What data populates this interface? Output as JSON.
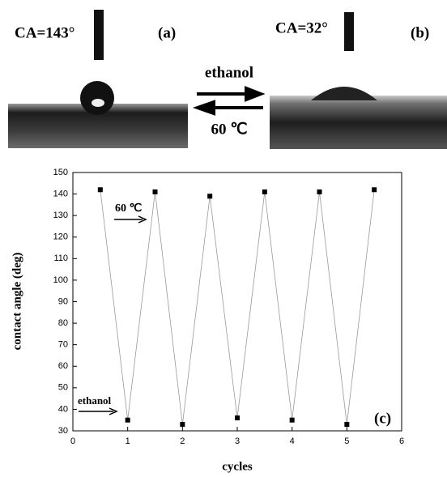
{
  "panels": {
    "a": {
      "label": "(a)",
      "angle": "CA=143°"
    },
    "b": {
      "label": "(b)",
      "angle": "CA=32°"
    },
    "forward": "ethanol",
    "backward": "60 ℃"
  },
  "chart_data": {
    "type": "line",
    "xlabel": "cycles",
    "ylabel": "contact angle (deg)",
    "x": [
      0.5,
      1,
      1.5,
      2,
      2.5,
      3,
      3.5,
      4,
      4.5,
      5,
      5.5
    ],
    "series": [
      {
        "color": "#000000",
        "values": [
          142,
          35,
          141,
          33,
          139,
          36,
          141,
          35,
          141,
          33,
          142
        ]
      }
    ],
    "xlim": [
      0,
      6
    ],
    "xticks": [
      0,
      1,
      2,
      3,
      4,
      5,
      6
    ],
    "ylim": [
      30,
      150
    ],
    "yticks": [
      30,
      40,
      50,
      60,
      70,
      80,
      90,
      100,
      110,
      120,
      130,
      140,
      150
    ],
    "annotations": [
      "60 ℃",
      "ethanol",
      "(c)"
    ]
  }
}
